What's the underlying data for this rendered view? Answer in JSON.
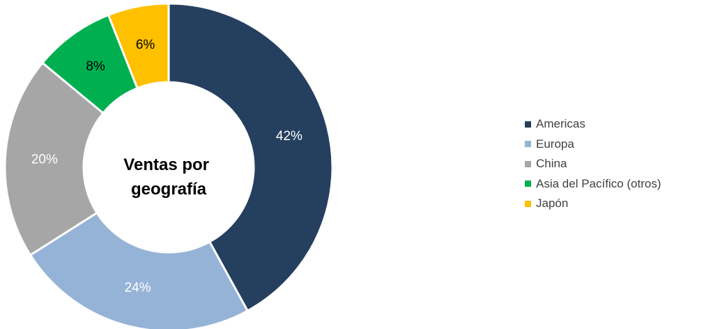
{
  "chart_data": {
    "type": "pie",
    "donut": true,
    "center_title_lines": [
      "Ventas por",
      "geografía"
    ],
    "categories": [
      "Americas",
      "Europa",
      "China",
      "Asia del Pacífico (otros)",
      "Japón"
    ],
    "values": [
      42,
      24,
      20,
      8,
      6
    ],
    "data_labels": [
      "42%",
      "24%",
      "20%",
      "8%",
      "6%"
    ],
    "colors": [
      "#253F5F",
      "#95B3D7",
      "#A6A6A6",
      "#00B050",
      "#FFC000"
    ],
    "label_colors": [
      "#FFFFFF",
      "#FFFFFF",
      "#FFFFFF",
      "#000000",
      "#000000"
    ],
    "legend_position": "right"
  }
}
